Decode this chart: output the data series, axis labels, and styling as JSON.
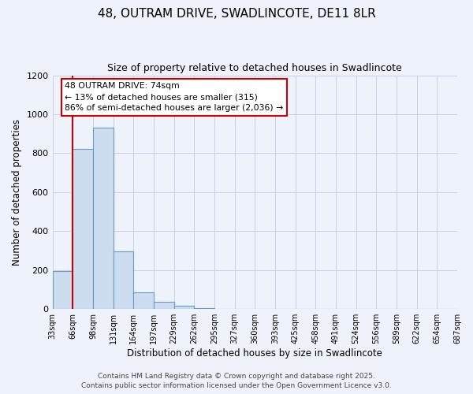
{
  "title": "48, OUTRAM DRIVE, SWADLINCOTE, DE11 8LR",
  "subtitle": "Size of property relative to detached houses in Swadlincote",
  "xlabel": "Distribution of detached houses by size in Swadlincote",
  "ylabel": "Number of detached properties",
  "bar_values": [
    197,
    820,
    930,
    298,
    85,
    38,
    17,
    5,
    0,
    0,
    0,
    0,
    0,
    0,
    0,
    0,
    0,
    0,
    0,
    0
  ],
  "bin_labels": [
    "33sqm",
    "66sqm",
    "98sqm",
    "131sqm",
    "164sqm",
    "197sqm",
    "229sqm",
    "262sqm",
    "295sqm",
    "327sqm",
    "360sqm",
    "393sqm",
    "425sqm",
    "458sqm",
    "491sqm",
    "524sqm",
    "556sqm",
    "589sqm",
    "622sqm",
    "654sqm",
    "687sqm"
  ],
  "bar_color": "#ccddf0",
  "bar_edge_color": "#6699cc",
  "background_color": "#eef2fb",
  "grid_color": "#c8cfe8",
  "vline_x": 1.0,
  "vline_color": "#cc0000",
  "annotation_line1": "48 OUTRAM DRIVE: 74sqm",
  "annotation_line2": "← 13% of detached houses are smaller (315)",
  "annotation_line3": "86% of semi-detached houses are larger (2,036) →",
  "annotation_box_color": "#ffffff",
  "annotation_box_edge": "#cc0000",
  "ylim": [
    0,
    1200
  ],
  "yticks": [
    0,
    200,
    400,
    600,
    800,
    1000,
    1200
  ],
  "footer1": "Contains HM Land Registry data © Crown copyright and database right 2025.",
  "footer2": "Contains public sector information licensed under the Open Government Licence v3.0."
}
